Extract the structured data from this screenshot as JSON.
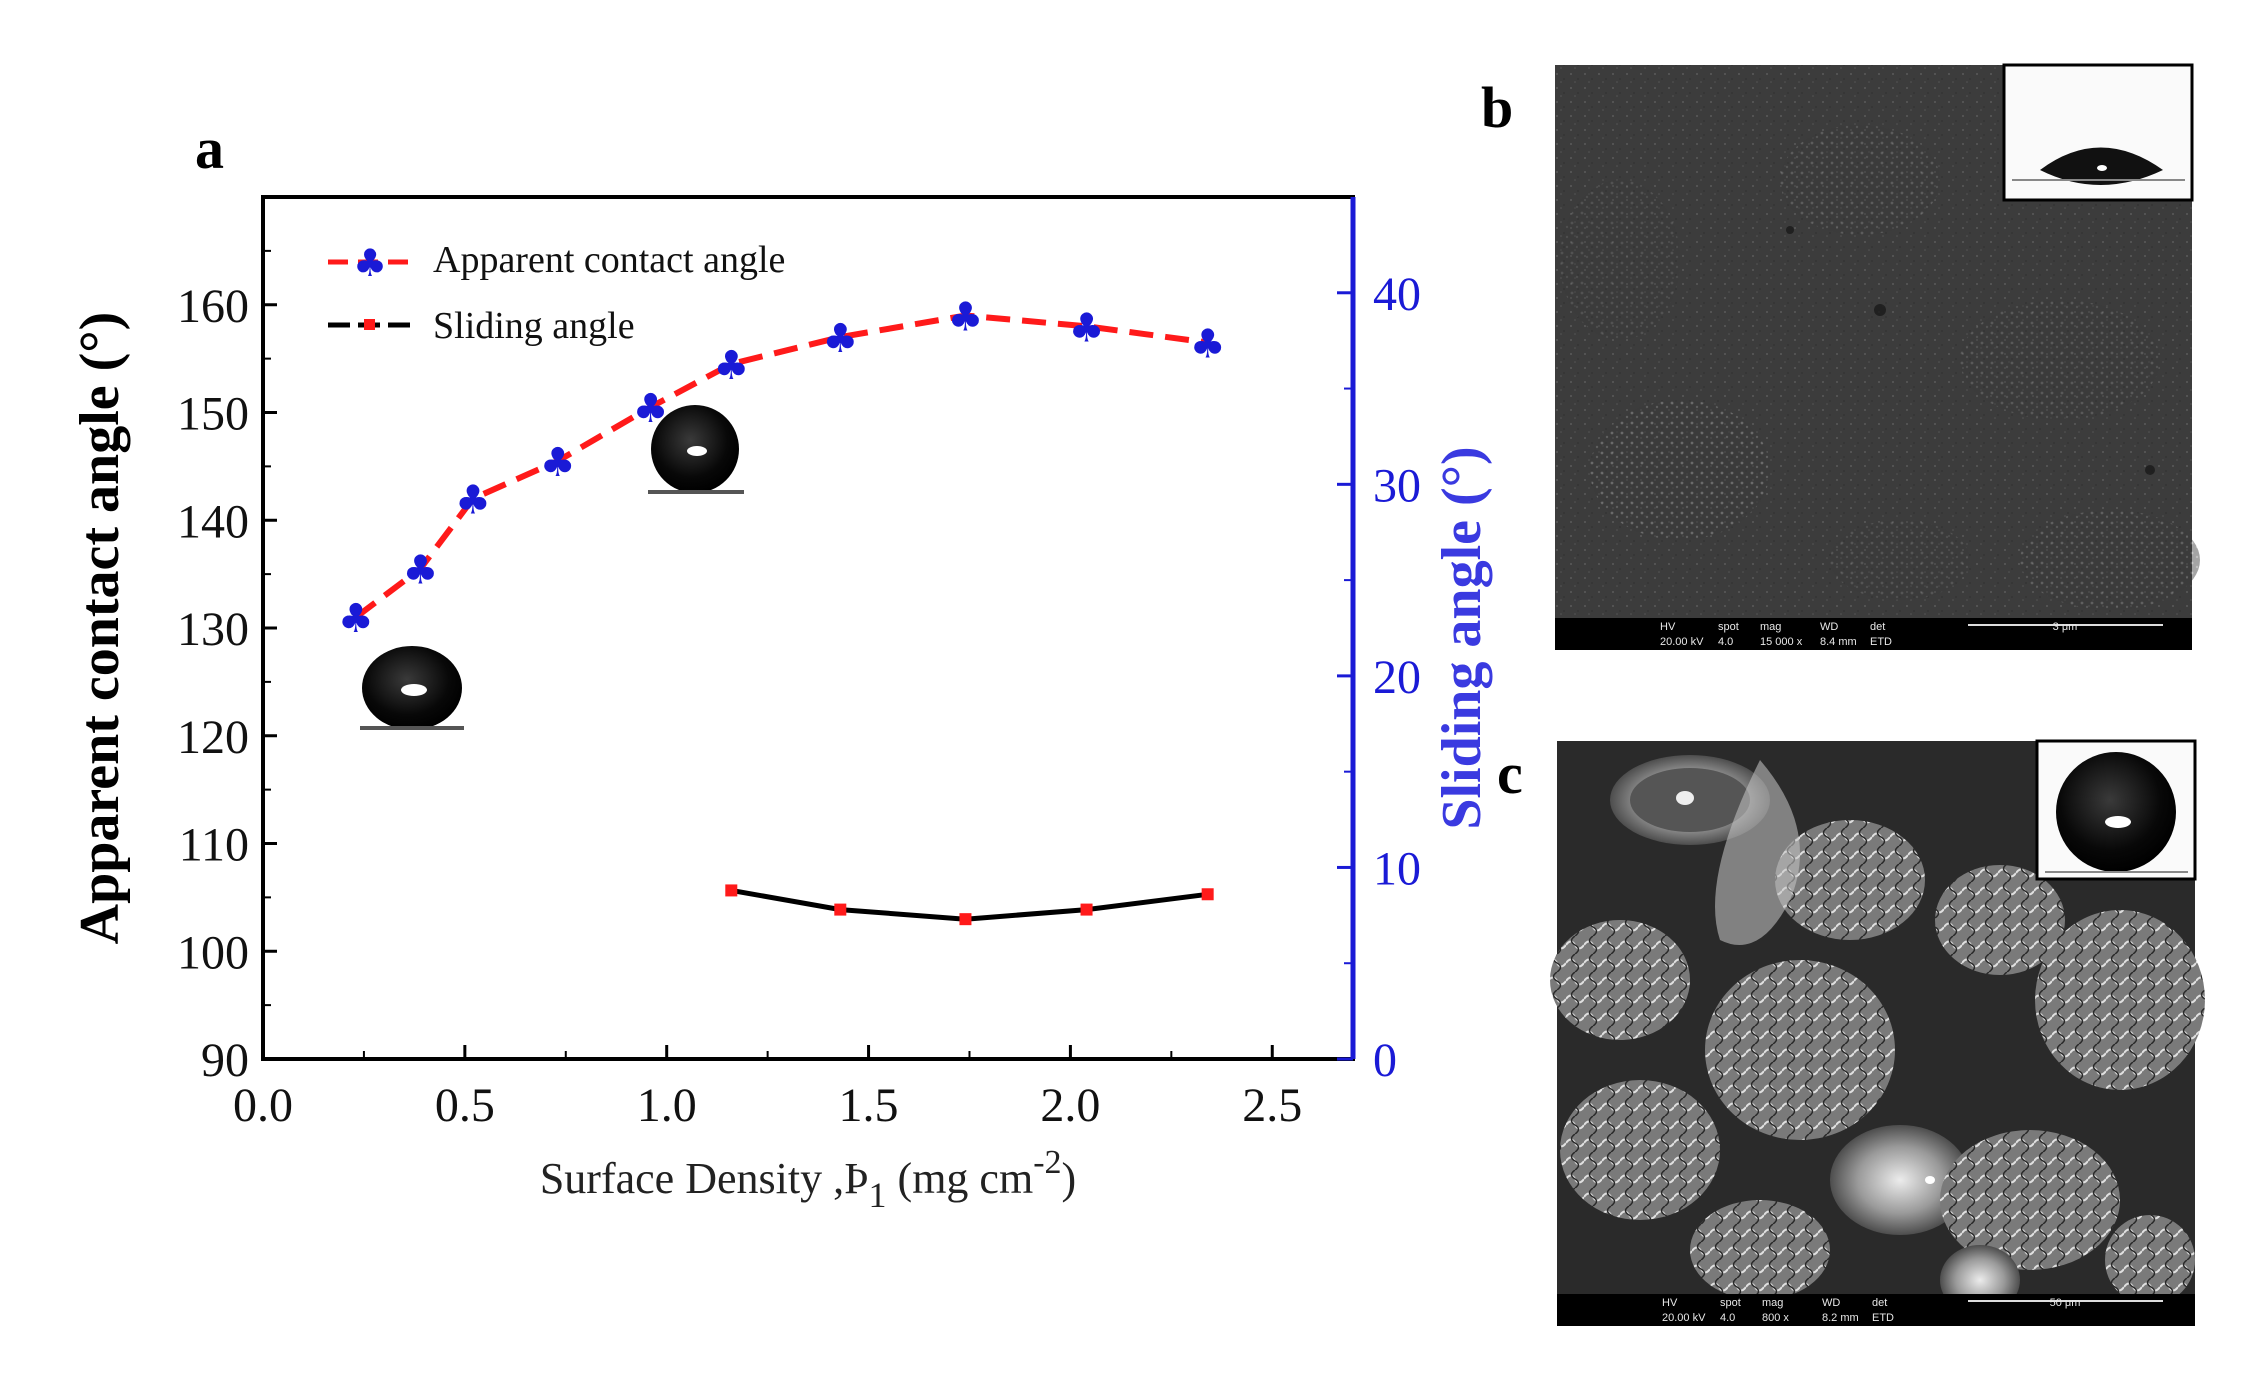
{
  "panels": {
    "a": "a",
    "b": "b",
    "c": "c"
  },
  "chart_data": {
    "type": "line",
    "title": "",
    "xlabel_main": "Surface Density ,Þ",
    "xlabel_sub": "1",
    "xlabel_unit": " (mg cm",
    "xlabel_sup": "-2",
    "xlabel_close": ")",
    "ylabel_left": "Apparent contact angle (°)",
    "ylabel_right": "Sliding angle (°)",
    "xlim": [
      0.0,
      2.7
    ],
    "ylim_left": [
      90,
      170
    ],
    "ylim_right": [
      0,
      45
    ],
    "xticks": [
      "0.0",
      "0.5",
      "1.0",
      "1.5",
      "2.0",
      "2.5"
    ],
    "xtick_values": [
      0.0,
      0.5,
      1.0,
      1.5,
      2.0,
      2.5
    ],
    "yticks_left": [
      "90",
      "100",
      "110",
      "120",
      "130",
      "140",
      "150",
      "160"
    ],
    "ytick_left_values": [
      90,
      100,
      110,
      120,
      130,
      140,
      150,
      160
    ],
    "yticks_right": [
      "0",
      "10",
      "20",
      "30",
      "40"
    ],
    "ytick_right_values": [
      0,
      10,
      20,
      30,
      40
    ],
    "legend_position": "top-left",
    "series": [
      {
        "name": "Apparent contact angle",
        "axis": "left",
        "color": "#ff1a1a",
        "marker_color": "#1a1ad6",
        "marker": "club",
        "line_style": "dashed",
        "x": [
          0.23,
          0.39,
          0.52,
          0.73,
          0.96,
          1.16,
          1.43,
          1.74,
          2.04,
          2.34
        ],
        "y": [
          131,
          135.5,
          142,
          145.5,
          150.5,
          154.5,
          157,
          159,
          158,
          156.5
        ]
      },
      {
        "name": "Sliding angle",
        "axis": "right",
        "color": "#000000",
        "marker_color": "#ff1a1a",
        "marker": "square",
        "line_style": "solid",
        "x": [
          1.16,
          1.43,
          1.74,
          2.04,
          2.34
        ],
        "y": [
          8.8,
          7.8,
          7.3,
          7.8,
          8.6
        ]
      }
    ]
  },
  "sem_b": {
    "footer": [
      "HV",
      "spot",
      "mag",
      "WD",
      "det"
    ],
    "values": [
      "20.00 kV",
      "4.0",
      "15 000 x",
      "8.4 mm",
      "ETD"
    ],
    "scale": "3 μm"
  },
  "sem_c": {
    "footer": [
      "HV",
      "spot",
      "mag",
      "WD",
      "det"
    ],
    "values": [
      "20.00 kV",
      "4.0",
      "800 x",
      "8.2 mm",
      "ETD"
    ],
    "scale": "50 μm"
  },
  "colors": {
    "left_axis": "#000000",
    "right_axis": "#1a1ad6",
    "right_title": "#3a3ae0"
  }
}
